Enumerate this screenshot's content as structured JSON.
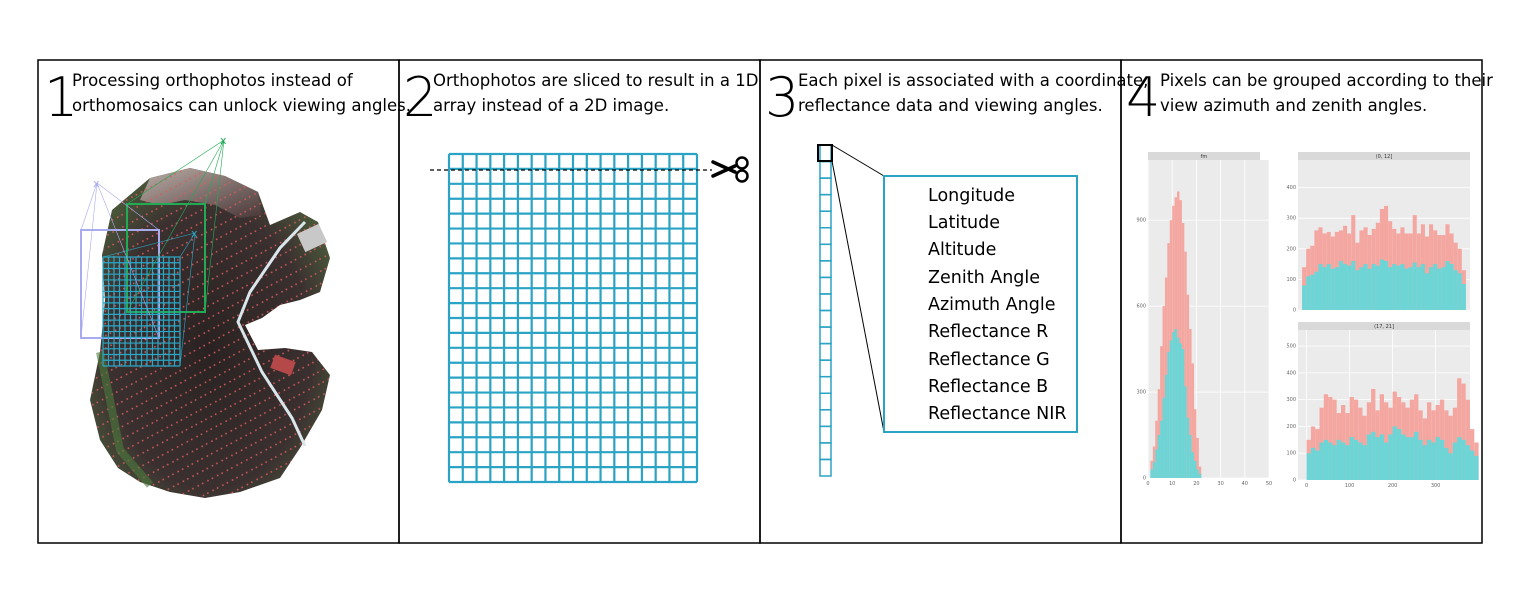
{
  "panels": [
    {
      "number": "1",
      "lines": [
        "Processing orthophotos instead of",
        "orthomosaics can unlock viewing angles."
      ]
    },
    {
      "number": "2",
      "lines": [
        "Orthophotos are sliced to result in a 1D",
        "array instead of a 2D image."
      ]
    },
    {
      "number": "3",
      "lines": [
        "Each pixel is associated with a coordinate,",
        "reflectance data and viewing angles."
      ]
    },
    {
      "number": "4",
      "lines": [
        "Pixels can be grouped according to their",
        "view azimuth and zenith angles."
      ]
    }
  ],
  "orthophoto": {
    "camera_marker": "x",
    "colors": {
      "camera_1": "#aaaaee",
      "camera_2": "#22aa55",
      "camera_3": "#2aa8c8"
    }
  },
  "slicing": {
    "scissors_icon": "scissors-icon",
    "grid_color": "#2aa3c4"
  },
  "attributes": [
    "Longitude",
    "Latitude",
    "Altitude",
    "Zenith Angle",
    "Azimuth Angle",
    "Reflectance R",
    "Reflectance G",
    "Reflectance B",
    "Reflectance NIR"
  ],
  "chart_data": [
    {
      "type": "bar",
      "facet_title": "fm",
      "x_ticks": [
        "0",
        "10",
        "20",
        "30",
        "40",
        "50"
      ],
      "xlim": [
        0,
        50
      ],
      "y_ticks": [
        "0",
        "300",
        "600",
        "900"
      ],
      "ylim": [
        0,
        1110
      ],
      "bin_width": 1,
      "bin_start": 1,
      "series": [
        {
          "color": "#f4a7a1",
          "values": [
            60,
            110,
            200,
            310,
            460,
            600,
            700,
            820,
            900,
            950,
            980,
            1000,
            970,
            890,
            790,
            640,
            520,
            400,
            240,
            140,
            40
          ]
        },
        {
          "color": "#6dd5d5",
          "values": [
            30,
            55,
            100,
            150,
            200,
            280,
            360,
            440,
            480,
            510,
            520,
            490,
            470,
            450,
            320,
            210,
            150,
            90,
            60,
            30,
            15
          ]
        }
      ],
      "colors": {
        "background": "#ebebeb",
        "grid": "#ffffff",
        "strip": "#d9d9d9"
      }
    },
    {
      "type": "bar",
      "facet_title": "(0, 12]",
      "y_ticks": [
        "0",
        "100",
        "200",
        "300",
        "400"
      ],
      "ylim": [
        0,
        490
      ],
      "x_ticks": [],
      "bin_width": 10,
      "bin_start": 0,
      "series": [
        {
          "color": "#f4a7a1",
          "values": [
            140,
            200,
            210,
            260,
            270,
            250,
            255,
            240,
            255,
            260,
            275,
            250,
            310,
            220,
            260,
            270,
            245,
            265,
            285,
            330,
            340,
            290,
            265,
            250,
            270,
            250,
            250,
            310,
            250,
            280,
            240,
            280,
            260,
            245,
            245,
            280,
            250,
            220,
            200,
            130
          ]
        },
        {
          "color": "#6dd5d5",
          "values": [
            80,
            110,
            115,
            125,
            150,
            140,
            150,
            135,
            140,
            160,
            150,
            145,
            160,
            130,
            140,
            150,
            135,
            150,
            145,
            165,
            160,
            140,
            150,
            145,
            150,
            135,
            140,
            155,
            140,
            150,
            120,
            140,
            150,
            135,
            140,
            160,
            150,
            130,
            120,
            85
          ]
        }
      ],
      "colors": {
        "background": "#ebebeb",
        "grid": "#ffffff",
        "strip": "#d9d9d9"
      }
    },
    {
      "type": "bar",
      "facet_title": "(17, 21]",
      "x_ticks": [
        "0",
        "100",
        "200",
        "300"
      ],
      "xlim": [
        -20,
        380
      ],
      "y_ticks": [
        "0",
        "100",
        "200",
        "300",
        "400",
        "500"
      ],
      "ylim": [
        0,
        560
      ],
      "bin_width": 10,
      "bin_start": 0,
      "series": [
        {
          "color": "#f4a7a1",
          "values": [
            150,
            200,
            190,
            270,
            320,
            310,
            300,
            250,
            280,
            250,
            310,
            300,
            270,
            240,
            290,
            340,
            260,
            320,
            290,
            270,
            330,
            310,
            290,
            270,
            300,
            320,
            260,
            230,
            290,
            260,
            280,
            300,
            260,
            240,
            270,
            380,
            360,
            300,
            190,
            140
          ]
        },
        {
          "color": "#6dd5d5",
          "values": [
            100,
            120,
            110,
            140,
            150,
            140,
            130,
            150,
            140,
            130,
            160,
            150,
            140,
            130,
            170,
            180,
            160,
            170,
            140,
            170,
            200,
            190,
            170,
            160,
            160,
            180,
            150,
            130,
            150,
            140,
            160,
            150,
            120,
            100,
            140,
            160,
            150,
            130,
            110,
            90
          ]
        }
      ],
      "colors": {
        "background": "#ebebeb",
        "grid": "#ffffff",
        "strip": "#d9d9d9"
      }
    }
  ]
}
